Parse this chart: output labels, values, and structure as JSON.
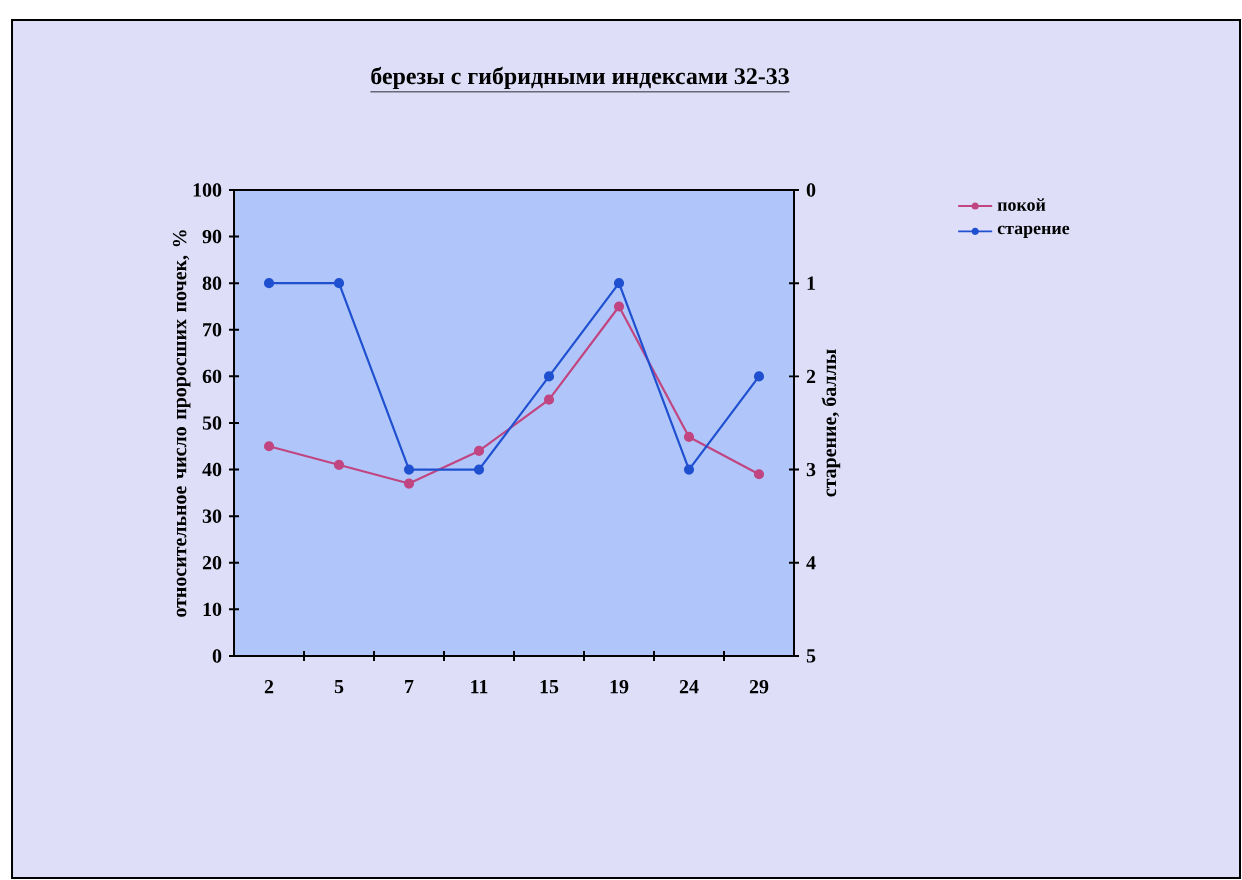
{
  "chart_data": {
    "type": "line",
    "title": "березы с гибридными индексами 32-33",
    "xlabel": null,
    "ylabel": "относительное число проросших почек, %",
    "y2label": "старение, баллы",
    "categories": [
      "2",
      "5",
      "7",
      "11",
      "15",
      "19",
      "24",
      "29"
    ],
    "series": [
      {
        "name": "покой",
        "color": "#c04580",
        "values": [
          45,
          41,
          37,
          44,
          55,
          75,
          47,
          39
        ]
      },
      {
        "name": "старение",
        "color": "#1f50d0",
        "axis": "y2",
        "values": [
          1,
          1,
          3,
          3,
          2,
          1,
          3,
          2
        ]
      }
    ],
    "ylim": [
      0,
      100
    ],
    "yticks": [
      0,
      10,
      20,
      30,
      40,
      50,
      60,
      70,
      80,
      90,
      100
    ],
    "y2lim": [
      5,
      0
    ],
    "y2ticks": [
      0,
      1,
      2,
      3,
      4,
      5
    ],
    "grid": false,
    "legend": "right",
    "marker": "circle"
  }
}
